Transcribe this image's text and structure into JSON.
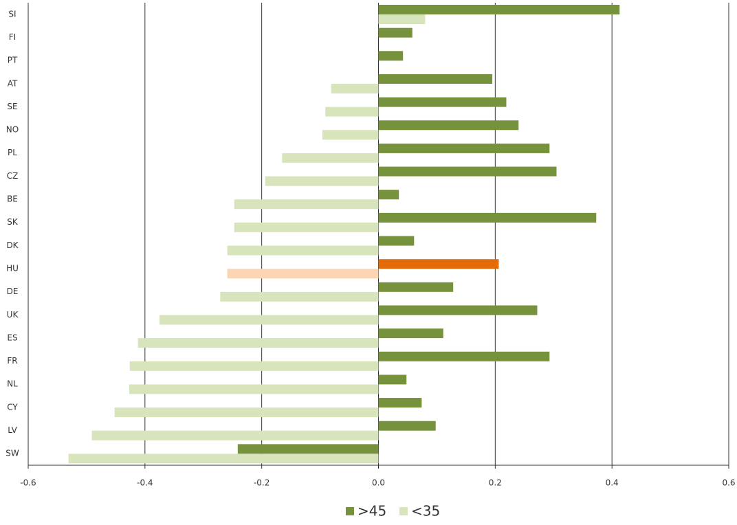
{
  "chart_data": {
    "type": "bar",
    "orientation": "horizontal",
    "categories": [
      "SI",
      "FI",
      "PT",
      "AT",
      "SE",
      "NO",
      "PL",
      "CZ",
      "BE",
      "SK",
      "DK",
      "HU",
      "DE",
      "UK",
      "ES",
      "FR",
      "NL",
      "CY",
      "LV",
      "SW"
    ],
    "series": [
      {
        "name": ">45",
        "color": "#76923c",
        "highlight_color": "#e36c09",
        "values": [
          0.413,
          0.058,
          0.042,
          0.195,
          0.219,
          0.24,
          0.293,
          0.305,
          0.035,
          0.373,
          0.061,
          0.206,
          0.128,
          0.272,
          0.111,
          0.293,
          0.048,
          0.074,
          0.098,
          -0.241
        ]
      },
      {
        "name": "<35",
        "color": "#d7e4bc",
        "highlight_color": "#fcd5b5",
        "values": [
          0.08,
          null,
          null,
          -0.081,
          -0.091,
          -0.096,
          -0.165,
          -0.194,
          -0.247,
          -0.247,
          -0.259,
          -0.259,
          -0.271,
          -0.375,
          -0.412,
          -0.426,
          -0.427,
          -0.452,
          -0.491,
          -0.531
        ]
      }
    ],
    "highlight_index": 11,
    "xlim": [
      -0.6,
      0.6
    ],
    "xticks": [
      -0.6,
      -0.4,
      -0.2,
      {
        "value": 0,
        "label": "0.0"
      },
      0.2,
      0.4,
      0.6
    ],
    "grid": true,
    "legend": "bottom"
  }
}
